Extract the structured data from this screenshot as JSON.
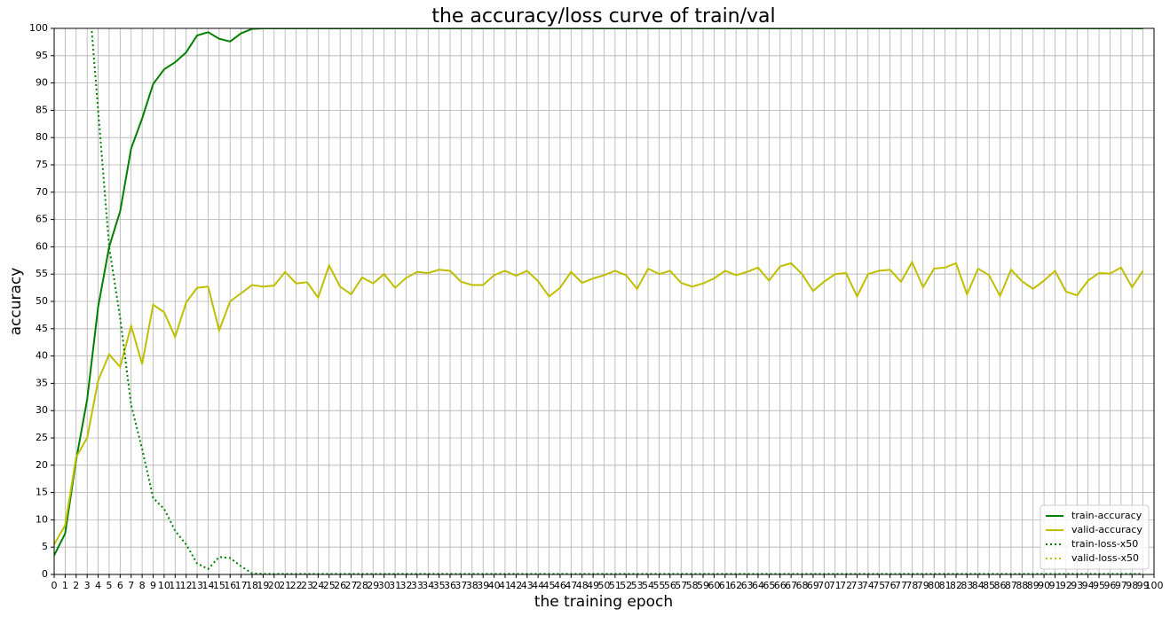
{
  "chart_data": {
    "type": "line",
    "title": "the accuracy/loss curve of train/val",
    "xlabel": "the training epoch",
    "ylabel": "accuracy",
    "x": [
      0,
      1,
      2,
      3,
      4,
      5,
      6,
      7,
      8,
      9,
      10,
      11,
      12,
      13,
      14,
      15,
      16,
      17,
      18,
      19,
      20,
      21,
      22,
      23,
      24,
      25,
      26,
      27,
      28,
      29,
      30,
      31,
      32,
      33,
      34,
      35,
      36,
      37,
      38,
      39,
      40,
      41,
      42,
      43,
      44,
      45,
      46,
      47,
      48,
      49,
      50,
      51,
      52,
      53,
      54,
      55,
      56,
      57,
      58,
      59,
      60,
      61,
      62,
      63,
      64,
      65,
      66,
      67,
      68,
      69,
      70,
      71,
      72,
      73,
      74,
      75,
      76,
      77,
      78,
      79,
      80,
      81,
      82,
      83,
      84,
      85,
      86,
      87,
      88,
      89,
      90,
      91,
      92,
      93,
      94,
      95,
      96,
      97,
      98,
      99
    ],
    "series": [
      {
        "name": "train-accuracy",
        "color": "#008000",
        "style": "solid",
        "values": [
          3.5,
          7.5,
          21,
          32,
          49,
          60,
          66.5,
          78,
          83.5,
          89.8,
          92.5,
          93.8,
          95.6,
          98.7,
          99.3,
          98.1,
          97.6,
          99.1,
          99.9,
          100,
          100,
          100,
          100,
          100,
          100,
          100,
          100,
          100,
          100,
          100,
          100,
          100,
          100,
          100,
          100,
          100,
          100,
          100,
          100,
          100,
          100,
          100,
          100,
          100,
          100,
          100,
          100,
          100,
          100,
          100,
          100,
          100,
          100,
          100,
          100,
          100,
          100,
          100,
          100,
          100,
          100,
          100,
          100,
          100,
          100,
          100,
          100,
          100,
          100,
          100,
          100,
          100,
          100,
          100,
          100,
          100,
          100,
          100,
          100,
          100,
          100,
          100,
          100,
          100,
          100,
          100,
          100,
          100,
          100,
          100,
          100,
          100,
          100,
          100,
          100,
          100,
          100,
          100,
          100,
          100
        ]
      },
      {
        "name": "valid-accuracy",
        "color": "#bfbf00",
        "style": "solid",
        "values": [
          5.5,
          9,
          21.5,
          25,
          35.5,
          40.3,
          38,
          45.5,
          38.5,
          49.4,
          48,
          43.5,
          49.8,
          52.5,
          52.7,
          44.7,
          50,
          51.5,
          53,
          52.7,
          52.9,
          55.4,
          53.3,
          53.5,
          50.7,
          56.6,
          52.7,
          51.3,
          54.4,
          53.3,
          55,
          52.5,
          54.3,
          55.4,
          55.2,
          55.8,
          55.6,
          53.6,
          53,
          53,
          54.8,
          55.6,
          54.7,
          55.6,
          53.7,
          50.9,
          52.5,
          55.4,
          53.4,
          54.2,
          54.8,
          55.6,
          54.8,
          52.3,
          56,
          55,
          55.6,
          53.4,
          52.7,
          53.3,
          54.2,
          55.6,
          54.8,
          55.4,
          56.2,
          53.8,
          56.4,
          57,
          55,
          51.9,
          53.6,
          55,
          55.2,
          50.9,
          55,
          55.6,
          55.8,
          53.6,
          57.2,
          52.6,
          56,
          56.2,
          57,
          51.3,
          56,
          54.8,
          51,
          55.8,
          53.7,
          52.3,
          53.8,
          55.6,
          51.8,
          51.1,
          53.8,
          55.2,
          55.1,
          56.2,
          52.6,
          55.6
        ]
      },
      {
        "name": "train-loss-x50",
        "color": "#008000",
        "style": "dotted",
        "values": [
          null,
          null,
          null,
          110,
          85,
          60,
          47,
          31,
          23,
          14,
          12,
          8,
          5.5,
          2,
          1,
          3.2,
          3,
          1.5,
          0.2,
          0.1,
          0.1,
          0.1,
          0.1,
          0.1,
          0.1,
          0.1,
          0.1,
          0.1,
          0.1,
          0.1,
          0.1,
          0.1,
          0.1,
          0.1,
          0.1,
          0.1,
          0.1,
          0.1,
          0.1,
          0.1,
          0.1,
          0.1,
          0.1,
          0.1,
          0.1,
          0.1,
          0.1,
          0.1,
          0.1,
          0.1,
          0.1,
          0.1,
          0.1,
          0.1,
          0.1,
          0.1,
          0.1,
          0.1,
          0.1,
          0.1,
          0.1,
          0.1,
          0.1,
          0.1,
          0.1,
          0.1,
          0.1,
          0.1,
          0.1,
          0.1,
          0.1,
          0.1,
          0.1,
          0.1,
          0.1,
          0.1,
          0.1,
          0.1,
          0.1,
          0.1,
          0.1,
          0.1,
          0.1,
          0.1,
          0.1,
          0.1,
          0.1,
          0.1,
          0.1,
          0.1,
          0.1,
          0.1,
          0.1,
          0.1,
          0.1,
          0.1,
          0.1,
          0.1,
          0.1,
          0.1
        ]
      },
      {
        "name": "valid-loss-x50",
        "color": "#bfbf00",
        "style": "dotted",
        "values": [
          null,
          null,
          null,
          null,
          null,
          null,
          null,
          null,
          null,
          null,
          null,
          null,
          null,
          null,
          null,
          null,
          null,
          null,
          null,
          null,
          null,
          null,
          null,
          null,
          null,
          null,
          null,
          null,
          null,
          null,
          null,
          null,
          null,
          null,
          null,
          null,
          null,
          null,
          null,
          null,
          null,
          null,
          null,
          null,
          null,
          null,
          null,
          null,
          null,
          null,
          null,
          null,
          null,
          null,
          null,
          null,
          null,
          null,
          null,
          null,
          null,
          null,
          null,
          null,
          null,
          null,
          null,
          null,
          null,
          null,
          null,
          null,
          null,
          null,
          null,
          null,
          null,
          null,
          null,
          null,
          null,
          null,
          null,
          null,
          null,
          null,
          null,
          null,
          null,
          null,
          null,
          null,
          null,
          null,
          null,
          null,
          null,
          null,
          null,
          null
        ]
      }
    ],
    "xlim": [
      0,
      100
    ],
    "ylim": [
      0,
      100
    ],
    "xticks": [
      0,
      1,
      2,
      3,
      4,
      5,
      6,
      7,
      8,
      9,
      10,
      11,
      12,
      13,
      14,
      15,
      16,
      17,
      18,
      19,
      20,
      21,
      22,
      23,
      24,
      25,
      26,
      27,
      28,
      29,
      30,
      31,
      32,
      33,
      34,
      35,
      36,
      37,
      38,
      39,
      40,
      41,
      42,
      43,
      44,
      45,
      46,
      47,
      48,
      49,
      50,
      51,
      52,
      53,
      54,
      55,
      56,
      57,
      58,
      59,
      60,
      61,
      62,
      63,
      64,
      65,
      66,
      67,
      68,
      69,
      70,
      71,
      72,
      73,
      74,
      75,
      76,
      77,
      78,
      79,
      80,
      81,
      82,
      83,
      84,
      85,
      86,
      87,
      88,
      89,
      90,
      91,
      92,
      93,
      94,
      95,
      96,
      97,
      98,
      99,
      100
    ],
    "yticks": [
      0,
      5,
      10,
      15,
      20,
      25,
      30,
      35,
      40,
      45,
      50,
      55,
      60,
      65,
      70,
      75,
      80,
      85,
      90,
      95,
      100
    ],
    "grid": true,
    "legend": "lower right"
  }
}
